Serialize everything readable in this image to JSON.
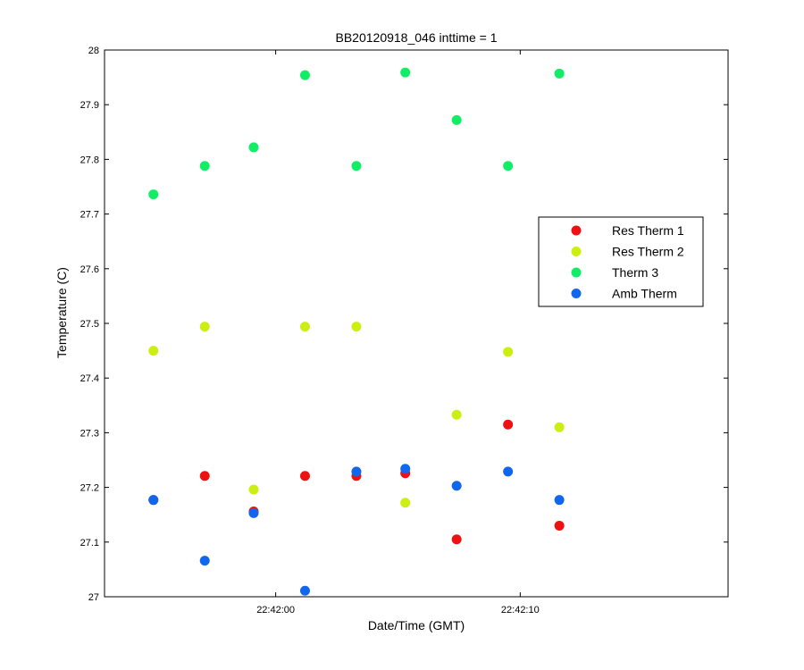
{
  "chart_data": {
    "type": "scatter",
    "title": "BB20120918_046 inttime = 1",
    "xlabel": "Date/Time (GMT)",
    "ylabel": "Temperature (C)",
    "x_unit": "time (GMT, HH:MM:SS)",
    "xlim": [
      "22:41:53.0",
      "22:42:18.5"
    ],
    "ylim": [
      27,
      28
    ],
    "x_ticks": [
      {
        "value": "22:42:00",
        "label": "22:42:00"
      },
      {
        "value": "22:42:10",
        "label": "22:42:10"
      }
    ],
    "y_ticks": [
      {
        "value": 27,
        "label": "27"
      },
      {
        "value": 27.1,
        "label": "27.1"
      },
      {
        "value": 27.2,
        "label": "27.2"
      },
      {
        "value": 27.3,
        "label": "27.3"
      },
      {
        "value": 27.4,
        "label": "27.4"
      },
      {
        "value": 27.5,
        "label": "27.5"
      },
      {
        "value": 27.6,
        "label": "27.6"
      },
      {
        "value": 27.7,
        "label": "27.7"
      },
      {
        "value": 27.8,
        "label": "27.8"
      },
      {
        "value": 27.9,
        "label": "27.9"
      },
      {
        "value": 28,
        "label": "28"
      }
    ],
    "grid": false,
    "legend_position": "right",
    "x": [
      "22:41:55.0",
      "22:41:57.1",
      "22:41:59.1",
      "22:42:01.2",
      "22:42:03.3",
      "22:42:05.3",
      "22:42:07.4",
      "22:42:09.5",
      "22:42:11.6"
    ],
    "series": [
      {
        "name": "Res Therm 1",
        "color": "#ee1111",
        "values": [
          27.177,
          27.221,
          27.156,
          27.221,
          27.221,
          27.226,
          27.105,
          27.315,
          27.13
        ]
      },
      {
        "name": "Res Therm 2",
        "color": "#ccee11",
        "values": [
          27.45,
          27.494,
          27.196,
          27.494,
          27.494,
          27.172,
          27.333,
          27.448,
          27.31
        ]
      },
      {
        "name": "Therm 3",
        "color": "#11ee66",
        "values": [
          27.736,
          27.788,
          27.822,
          27.954,
          27.788,
          27.959,
          27.872,
          27.788,
          27.957
        ]
      },
      {
        "name": "Amb Therm",
        "color": "#1166ee",
        "values": [
          27.177,
          27.066,
          27.153,
          27.011,
          27.229,
          27.234,
          27.203,
          27.229,
          27.177
        ]
      }
    ]
  }
}
